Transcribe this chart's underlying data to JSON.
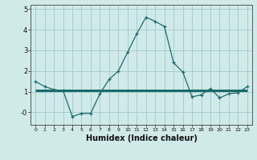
{
  "xlabel": "Humidex (Indice chaleur)",
  "x": [
    0,
    1,
    2,
    3,
    4,
    5,
    6,
    7,
    8,
    9,
    10,
    11,
    12,
    13,
    14,
    15,
    16,
    17,
    18,
    19,
    20,
    21,
    22,
    23
  ],
  "y_curve": [
    1.5,
    1.25,
    1.1,
    1.05,
    -0.2,
    -0.05,
    -0.05,
    0.9,
    1.6,
    2.0,
    2.9,
    3.8,
    4.6,
    4.4,
    4.15,
    2.4,
    1.95,
    0.75,
    0.85,
    1.15,
    0.7,
    0.9,
    0.95,
    1.25
  ],
  "y_line": [
    1.05,
    1.05,
    1.05,
    1.05,
    1.05,
    1.05,
    1.05,
    1.05,
    1.05,
    1.05,
    1.05,
    1.05,
    1.05,
    1.05,
    1.05,
    1.05,
    1.05,
    1.05,
    1.05,
    1.05,
    1.05,
    1.05,
    1.05,
    1.05
  ],
  "line_color": "#1a6b6b",
  "bg_color": "#d0eaea",
  "grid_color": "#a8cccc",
  "ylim": [
    -0.6,
    5.2
  ],
  "xtick_labels": [
    "0",
    "1",
    "2",
    "3",
    "4",
    "5",
    "6",
    "7",
    "8",
    "9",
    "10",
    "11",
    "12",
    "13",
    "14",
    "15",
    "16",
    "17",
    "18",
    "19",
    "20",
    "21",
    "22",
    "23"
  ]
}
